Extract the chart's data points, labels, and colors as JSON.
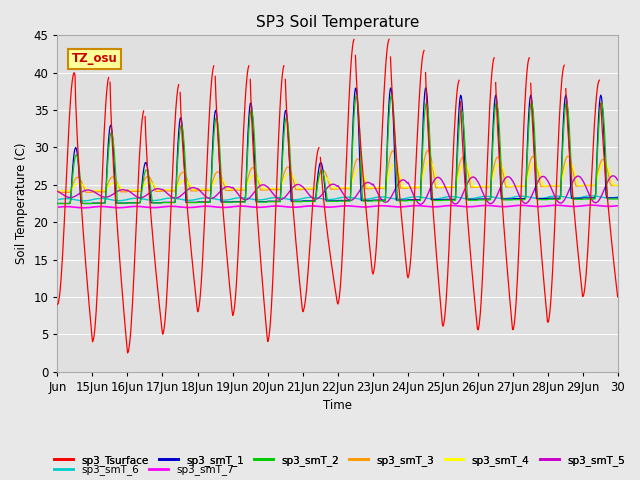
{
  "title": "SP3 Soil Temperature",
  "xlabel": "Time",
  "ylabel": "Soil Temperature (C)",
  "ylim": [
    0,
    45
  ],
  "background_color": "#e8e8e8",
  "plot_bg_color": "#e0e0e0",
  "grid_color": "#ffffff",
  "annotation_text": "TZ_osu",
  "annotation_bg": "#ffff99",
  "annotation_border": "#cc8800",
  "annotation_text_color": "#cc0000",
  "x_tick_labels": [
    "Jun",
    "15Jun",
    "16Jun",
    "17Jun",
    "18Jun",
    "19Jun",
    "20Jun",
    "21Jun",
    "22Jun",
    "23Jun",
    "24Jun",
    "25Jun",
    "26Jun",
    "27Jun",
    "28Jun",
    "29Jun",
    "30"
  ],
  "series_colors": {
    "sp3_Tsurface": "#ff0000",
    "sp3_smT_1": "#0000cc",
    "sp3_smT_2": "#00cc00",
    "sp3_smT_3": "#ff9900",
    "sp3_smT_4": "#ffff00",
    "sp3_smT_5": "#cc00cc",
    "sp3_smT_6": "#00cccc",
    "sp3_smT_7": "#ff00ff"
  },
  "legend_order": [
    "sp3_Tsurface",
    "sp3_smT_1",
    "sp3_smT_2",
    "sp3_smT_3",
    "sp3_smT_4",
    "sp3_smT_5",
    "sp3_smT_6",
    "sp3_smT_7"
  ],
  "n_days": 16,
  "points_per_day": 48,
  "surface_peaks": [
    40,
    39.5,
    35,
    38.5,
    41,
    41,
    41,
    30,
    44.5,
    44.5,
    43,
    39,
    42,
    42,
    41,
    39
  ],
  "surface_night_lows": [
    9,
    4,
    2.5,
    5,
    8,
    7.5,
    4,
    8,
    9,
    13,
    12.5,
    6,
    5.5,
    5.5,
    6.5,
    10
  ],
  "smT1_peaks": [
    30,
    33,
    28,
    34,
    35,
    36,
    35,
    28,
    38,
    38,
    38,
    37,
    37,
    37,
    37,
    37
  ],
  "smT2_peaks": [
    29,
    32,
    27,
    33,
    34,
    35,
    34,
    27,
    37,
    37,
    36,
    35,
    36,
    36,
    36,
    36
  ],
  "smT3_amps": [
    2.0,
    2.0,
    2.0,
    2.5,
    2.5,
    3.0,
    3.0,
    2.5,
    4.0,
    5.0,
    5.0,
    4.0,
    4.0,
    4.0,
    4.0,
    3.5
  ],
  "smT4_amps": [
    1.0,
    1.0,
    1.0,
    1.2,
    1.5,
    1.8,
    2.0,
    1.5,
    2.5,
    3.0,
    3.5,
    3.0,
    3.0,
    3.0,
    3.0,
    3.0
  ],
  "smT5_amps": [
    0.5,
    0.5,
    0.6,
    0.7,
    0.8,
    1.0,
    1.0,
    1.0,
    1.2,
    1.5,
    1.8,
    1.8,
    1.8,
    1.8,
    1.8,
    1.8
  ]
}
